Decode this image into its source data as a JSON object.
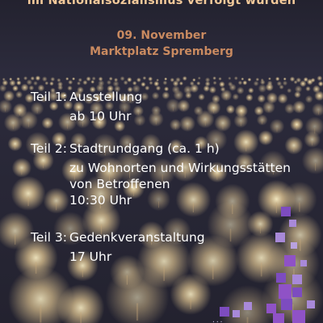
{
  "poster": {
    "subtitle_line": "im Nationalsozialismus verfolgt wurden",
    "date": "09. November",
    "location": "Marktplatz Spremberg",
    "program": [
      {
        "label": "Teil 1:",
        "title": "Ausstellung",
        "detail": [
          "ab 10 Uhr"
        ]
      },
      {
        "label": "Teil 2:",
        "title": "Stadtrundgang (ca. 1 h)",
        "detail": [
          "zu Wohnorten und Wirkungsstätten",
          "von Betroffenen",
          "10:30 Uhr"
        ]
      },
      {
        "label": "Teil 3:",
        "title": "Gedenkveranstaltung",
        "detail": [
          "17 Uhr"
        ]
      }
    ],
    "footer_partial": "...",
    "colors": {
      "background": "#23222f",
      "headline": "#f2c99a",
      "date_location": "#c98a60",
      "body_text": "#ffffff",
      "light_glow": "#f5d79c",
      "mosaic_purple": "#8f52c6",
      "mosaic_lilac": "#a889d8"
    }
  }
}
